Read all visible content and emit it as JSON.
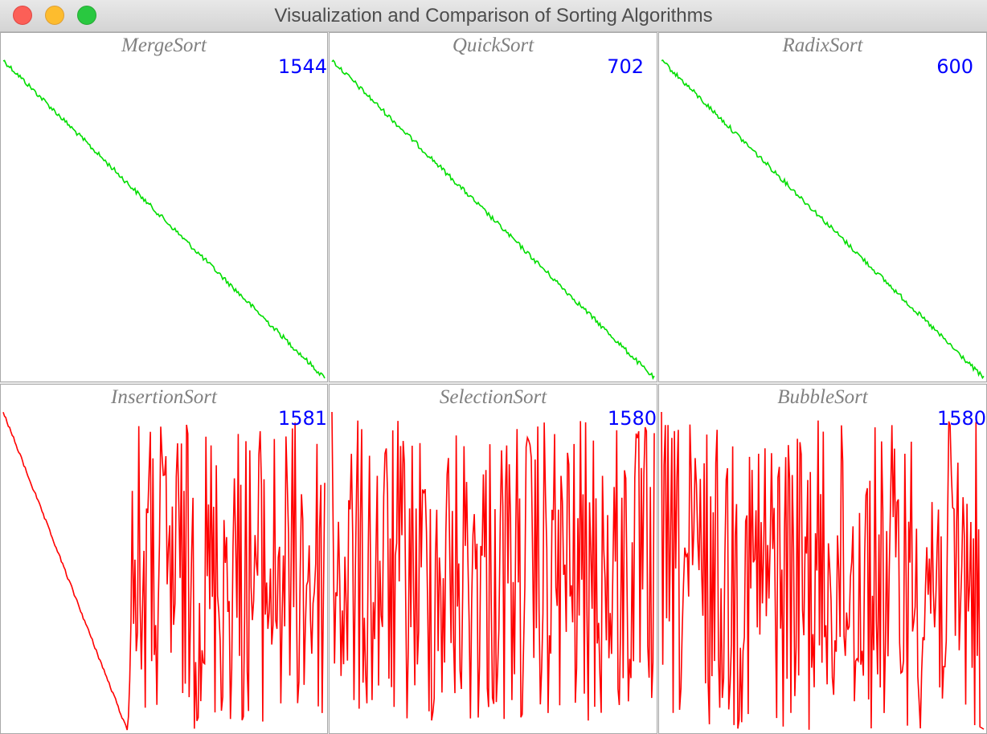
{
  "window": {
    "title": "Visualization and Comparison of Sorting Algorithms"
  },
  "panels": [
    {
      "name": "MergeSort",
      "count": "1544",
      "color": "#00dd00",
      "kind": "sorted"
    },
    {
      "name": "QuickSort",
      "count": "702",
      "color": "#00dd00",
      "kind": "sorted"
    },
    {
      "name": "RadixSort",
      "count": "600",
      "color": "#00dd00",
      "kind": "sorted"
    },
    {
      "name": "InsertionSort",
      "count": "1581",
      "color": "#ff0000",
      "kind": "insertion"
    },
    {
      "name": "SelectionSort",
      "count": "1580",
      "color": "#ff0000",
      "kind": "unsorted"
    },
    {
      "name": "BubbleSort",
      "count": "1580",
      "color": "#ff0000",
      "kind": "bubble"
    }
  ]
}
